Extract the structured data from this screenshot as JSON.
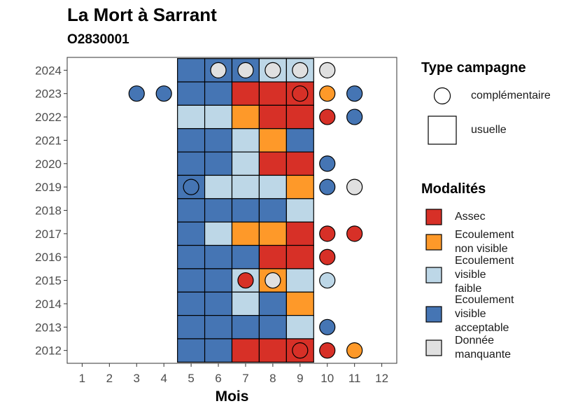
{
  "chart_data": {
    "type": "heatmap",
    "title": "La Mort à Sarrant",
    "subtitle": "O2830001",
    "xlabel": "Mois",
    "ylabel": "",
    "x_ticks": [
      "1",
      "2",
      "3",
      "4",
      "5",
      "6",
      "7",
      "8",
      "9",
      "10",
      "11",
      "12"
    ],
    "y_ticks": [
      "2012",
      "2013",
      "2014",
      "2015",
      "2016",
      "2017",
      "2018",
      "2019",
      "2020",
      "2021",
      "2022",
      "2023",
      "2024"
    ],
    "colors": {
      "Assec": "#d73027",
      "Ecoulement non visible": "#fe9929",
      "Ecoulement visible faible": "#bdd7e7",
      "Ecoulement visible acceptable": "#4575b4",
      "Donnée manquante": "#e0e0e0"
    },
    "legend_campagne": {
      "title": "Type campagne",
      "items": [
        "complémentaire",
        "usuelle"
      ]
    },
    "legend_modalites": {
      "title": "Modalités",
      "items": [
        {
          "label_lines": [
            "Assec"
          ],
          "key": "Assec"
        },
        {
          "label_lines": [
            "Ecoulement",
            "non visible"
          ],
          "key": "Ecoulement non visible"
        },
        {
          "label_lines": [
            "Ecoulement",
            "visible",
            "faible"
          ],
          "key": "Ecoulement visible faible"
        },
        {
          "label_lines": [
            "Ecoulement",
            "visible",
            "acceptable"
          ],
          "key": "Ecoulement visible acceptable"
        },
        {
          "label_lines": [
            "Donnée",
            "manquante"
          ],
          "key": "Donnée manquante"
        }
      ]
    },
    "usuelle": [
      {
        "year": 2024,
        "cells": [
          "Ecoulement visible acceptable",
          "Ecoulement visible acceptable",
          "Ecoulement visible acceptable",
          "Ecoulement visible faible",
          "Ecoulement visible faible"
        ]
      },
      {
        "year": 2023,
        "cells": [
          "Ecoulement visible acceptable",
          "Ecoulement visible acceptable",
          "Assec",
          "Assec",
          "Assec"
        ]
      },
      {
        "year": 2022,
        "cells": [
          "Ecoulement visible faible",
          "Ecoulement visible faible",
          "Ecoulement non visible",
          "Assec",
          "Assec"
        ]
      },
      {
        "year": 2021,
        "cells": [
          "Ecoulement visible acceptable",
          "Ecoulement visible acceptable",
          "Ecoulement visible faible",
          "Ecoulement non visible",
          "Ecoulement visible acceptable"
        ]
      },
      {
        "year": 2020,
        "cells": [
          "Ecoulement visible acceptable",
          "Ecoulement visible acceptable",
          "Ecoulement visible faible",
          "Assec",
          "Assec"
        ]
      },
      {
        "year": 2019,
        "cells": [
          "Ecoulement visible acceptable",
          "Ecoulement visible faible",
          "Ecoulement visible faible",
          "Ecoulement visible faible",
          "Ecoulement non visible"
        ]
      },
      {
        "year": 2018,
        "cells": [
          "Ecoulement visible acceptable",
          "Ecoulement visible acceptable",
          "Ecoulement visible acceptable",
          "Ecoulement visible acceptable",
          "Ecoulement visible faible"
        ]
      },
      {
        "year": 2017,
        "cells": [
          "Ecoulement visible acceptable",
          "Ecoulement visible faible",
          "Ecoulement non visible",
          "Ecoulement non visible",
          "Assec"
        ]
      },
      {
        "year": 2016,
        "cells": [
          "Ecoulement visible acceptable",
          "Ecoulement visible acceptable",
          "Ecoulement visible acceptable",
          "Assec",
          "Assec"
        ]
      },
      {
        "year": 2015,
        "cells": [
          "Ecoulement visible acceptable",
          "Ecoulement visible acceptable",
          "Ecoulement visible faible",
          "Ecoulement non visible",
          "Ecoulement visible faible"
        ]
      },
      {
        "year": 2014,
        "cells": [
          "Ecoulement visible acceptable",
          "Ecoulement visible acceptable",
          "Ecoulement visible faible",
          "Ecoulement visible acceptable",
          "Ecoulement non visible"
        ]
      },
      {
        "year": 2013,
        "cells": [
          "Ecoulement visible acceptable",
          "Ecoulement visible acceptable",
          "Ecoulement visible acceptable",
          "Ecoulement visible acceptable",
          "Ecoulement visible faible"
        ]
      },
      {
        "year": 2012,
        "cells": [
          "Ecoulement visible acceptable",
          "Ecoulement visible acceptable",
          "Assec",
          "Assec",
          "Assec"
        ]
      }
    ],
    "usuelle_months": [
      5,
      6,
      7,
      8,
      9
    ],
    "complementaire": [
      {
        "year": 2024,
        "month": 6,
        "value": "Donnée manquante"
      },
      {
        "year": 2024,
        "month": 7,
        "value": "Donnée manquante"
      },
      {
        "year": 2024,
        "month": 8,
        "value": "Donnée manquante"
      },
      {
        "year": 2024,
        "month": 9,
        "value": "Donnée manquante"
      },
      {
        "year": 2024,
        "month": 10,
        "value": "Donnée manquante"
      },
      {
        "year": 2023,
        "month": 3,
        "value": "Ecoulement visible acceptable"
      },
      {
        "year": 2023,
        "month": 4,
        "value": "Ecoulement visible acceptable"
      },
      {
        "year": 2023,
        "month": 9,
        "value": "Assec"
      },
      {
        "year": 2023,
        "month": 10,
        "value": "Ecoulement non visible"
      },
      {
        "year": 2023,
        "month": 11,
        "value": "Ecoulement visible acceptable"
      },
      {
        "year": 2022,
        "month": 10,
        "value": "Assec"
      },
      {
        "year": 2022,
        "month": 11,
        "value": "Ecoulement visible acceptable"
      },
      {
        "year": 2020,
        "month": 10,
        "value": "Ecoulement visible acceptable"
      },
      {
        "year": 2019,
        "month": 5,
        "value": "Ecoulement visible acceptable"
      },
      {
        "year": 2019,
        "month": 10,
        "value": "Ecoulement visible acceptable"
      },
      {
        "year": 2019,
        "month": 11,
        "value": "Donnée manquante"
      },
      {
        "year": 2017,
        "month": 10,
        "value": "Assec"
      },
      {
        "year": 2017,
        "month": 11,
        "value": "Assec"
      },
      {
        "year": 2016,
        "month": 10,
        "value": "Assec"
      },
      {
        "year": 2015,
        "month": 7,
        "value": "Assec"
      },
      {
        "year": 2015,
        "month": 8,
        "value": "Donnée manquante"
      },
      {
        "year": 2015,
        "month": 10,
        "value": "Ecoulement visible faible"
      },
      {
        "year": 2013,
        "month": 10,
        "value": "Ecoulement visible acceptable"
      },
      {
        "year": 2012,
        "month": 9,
        "value": "Assec"
      },
      {
        "year": 2012,
        "month": 10,
        "value": "Assec"
      },
      {
        "year": 2012,
        "month": 11,
        "value": "Ecoulement non visible"
      }
    ]
  }
}
